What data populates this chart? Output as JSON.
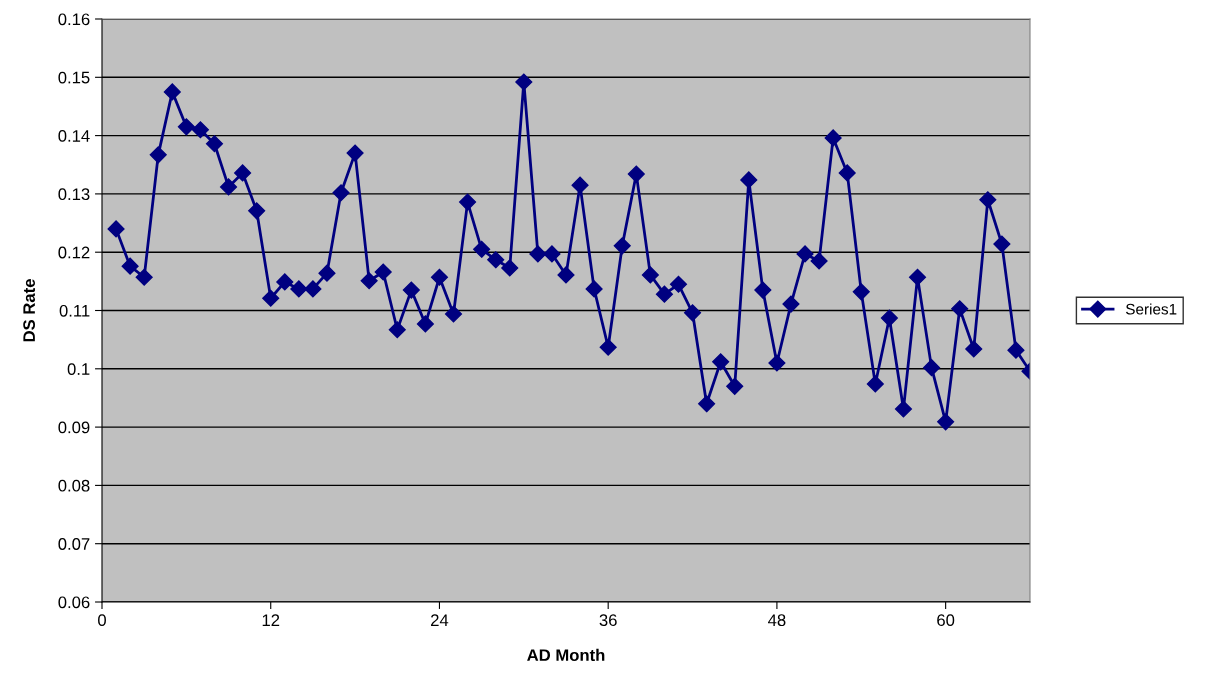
{
  "chart_data": {
    "type": "line",
    "xlabel": "AD Month",
    "ylabel": "DS Rate",
    "x": [
      1,
      2,
      3,
      4,
      5,
      6,
      7,
      8,
      9,
      10,
      11,
      12,
      13,
      14,
      15,
      16,
      17,
      18,
      19,
      20,
      21,
      22,
      23,
      24,
      25,
      26,
      27,
      28,
      29,
      30,
      31,
      32,
      33,
      34,
      35,
      36,
      37,
      38,
      39,
      40,
      41,
      42,
      43,
      44,
      45,
      46,
      47,
      48,
      49,
      50,
      51,
      52,
      53,
      54,
      55,
      56,
      57,
      58,
      59,
      60,
      61,
      62,
      63,
      64,
      65,
      66
    ],
    "series": [
      {
        "name": "Series1",
        "color": "#000080",
        "values": [
          0.124,
          0.1176,
          0.1157,
          0.1367,
          0.1475,
          0.1415,
          0.141,
          0.1386,
          0.1312,
          0.1336,
          0.1271,
          0.1121,
          0.1149,
          0.1137,
          0.1137,
          0.1164,
          0.1302,
          0.137,
          0.1151,
          0.1166,
          0.1067,
          0.1135,
          0.1077,
          0.1157,
          0.1094,
          0.1286,
          0.1205,
          0.1187,
          0.1173,
          0.1492,
          0.1197,
          0.1197,
          0.1161,
          0.1315,
          0.1137,
          0.1037,
          0.1211,
          0.1334,
          0.1161,
          0.1128,
          0.1145,
          0.1096,
          0.094,
          0.1012,
          0.097,
          0.1324,
          0.1135,
          0.101,
          0.1111,
          0.1197,
          0.1185,
          0.1396,
          0.1336,
          0.1132,
          0.0974,
          0.1087,
          0.0931,
          0.1157,
          0.1002,
          0.0909,
          0.1103,
          0.1034,
          0.129,
          0.1214,
          0.1032,
          0.0996
        ]
      }
    ],
    "xlim": [
      0,
      66
    ],
    "xticks": [
      0,
      12,
      24,
      36,
      48,
      60
    ],
    "ylim": [
      0.06,
      0.16
    ],
    "yticks": [
      0.06,
      0.07,
      0.08,
      0.09,
      0.1,
      0.11,
      0.12,
      0.13,
      0.14,
      0.15,
      0.16
    ],
    "grid": "y",
    "legend": "right",
    "marker": "diamond",
    "line_style": "solid"
  }
}
